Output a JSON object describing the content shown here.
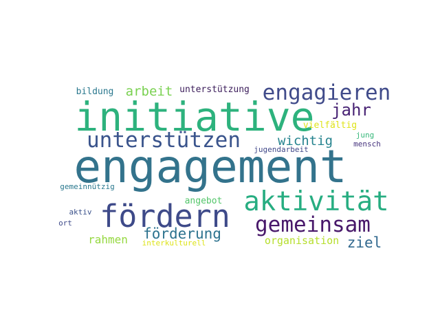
{
  "word_cloud": {
    "words": [
      {
        "id": "engagement",
        "text": "engagement",
        "color": "#33738c"
      },
      {
        "id": "initiative",
        "text": "initiative",
        "color": "#2db27d"
      },
      {
        "id": "engagieren",
        "text": "engagieren",
        "color": "#404b8a"
      },
      {
        "id": "unterstuetzen",
        "text": "unterstützen",
        "color": "#3a548c"
      },
      {
        "id": "aktivitaet",
        "text": "aktivität",
        "color": "#27ad81"
      },
      {
        "id": "foerdern",
        "text": "fördern",
        "color": "#3e4a89"
      },
      {
        "id": "gemeinsam",
        "text": "gemeinsam",
        "color": "#48186a"
      },
      {
        "id": "jahr",
        "text": "jahr",
        "color": "#482374"
      },
      {
        "id": "arbeit",
        "text": "arbeit",
        "color": "#7ad151"
      },
      {
        "id": "unterstuetzung",
        "text": "unterstützung",
        "color": "#3b1c5a"
      },
      {
        "id": "bildung",
        "text": "bildung",
        "color": "#2a788e"
      },
      {
        "id": "wichtig",
        "text": "wichtig",
        "color": "#25838e"
      },
      {
        "id": "vielfaeltig",
        "text": "vielfältig",
        "color": "#dfe318"
      },
      {
        "id": "jung",
        "text": "jung",
        "color": "#35b779"
      },
      {
        "id": "mensch",
        "text": "mensch",
        "color": "#46337e"
      },
      {
        "id": "jugendarbeit",
        "text": "jugendarbeit",
        "color": "#3f4788"
      },
      {
        "id": "foerderung",
        "text": "förderung",
        "color": "#2c728e"
      },
      {
        "id": "angebot",
        "text": "angebot",
        "color": "#52c569"
      },
      {
        "id": "rahmen",
        "text": "rahmen",
        "color": "#95d840"
      },
      {
        "id": "organisation",
        "text": "organisation",
        "color": "#b5de2b"
      },
      {
        "id": "ziel",
        "text": "ziel",
        "color": "#31688e"
      },
      {
        "id": "interkulturell",
        "text": "interkulturell",
        "color": "#dde318"
      },
      {
        "id": "gemeinnuetzig",
        "text": "gemeinnützig",
        "color": "#2a788e"
      },
      {
        "id": "aktiv",
        "text": "aktiv",
        "color": "#3b528b"
      },
      {
        "id": "ort",
        "text": "ort",
        "color": "#3e4a89"
      }
    ]
  }
}
